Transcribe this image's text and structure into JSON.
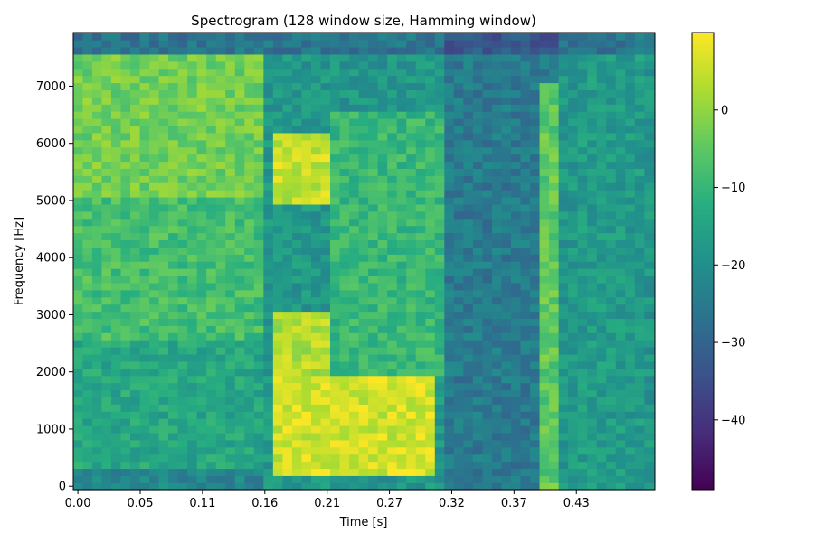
{
  "chart_data": {
    "type": "heatmap",
    "title": "Spectrogram (128 window size, Hamming window)",
    "xlabel": "Time [s]",
    "ylabel": "Frequency [Hz]",
    "colormap": "viridis",
    "xlim": [
      -0.004,
      0.5
    ],
    "ylim": [
      -60,
      7940
    ],
    "x_ticks": [
      0.0,
      0.054,
      0.108,
      0.162,
      0.216,
      0.27,
      0.324,
      0.378,
      0.432
    ],
    "x_tick_labels": [
      "0.00",
      "0.05",
      "0.11",
      "0.16",
      "0.21",
      "0.27",
      "0.32",
      "0.37",
      "0.43"
    ],
    "y_ticks": [
      0,
      1000,
      2000,
      3000,
      4000,
      5000,
      6000,
      7000
    ],
    "y_tick_labels": [
      "0",
      "1000",
      "2000",
      "3000",
      "4000",
      "5000",
      "6000",
      "7000"
    ],
    "time_bins": 61,
    "freq_bins": 65,
    "freq_step_hz": 125,
    "time_step_s": 0.00825,
    "colorbar": {
      "range": [
        -49,
        10
      ],
      "ticks": [
        0,
        -10,
        -20,
        -30,
        -40
      ],
      "tick_labels": [
        "0",
        "−10",
        "−20",
        "−30",
        "−40"
      ]
    },
    "regions": [
      {
        "t": [
          0.0,
          0.16
        ],
        "f": [
          5000,
          7600
        ],
        "level_db": -3
      },
      {
        "t": [
          0.0,
          0.16
        ],
        "f": [
          2500,
          5000
        ],
        "level_db": -8
      },
      {
        "t": [
          0.0,
          0.16
        ],
        "f": [
          300,
          2500
        ],
        "level_db": -14
      },
      {
        "t": [
          0.0,
          0.16
        ],
        "f": [
          0,
          300
        ],
        "level_db": -22
      },
      {
        "t": [
          0.17,
          0.24
        ],
        "f": [
          5000,
          6200
        ],
        "level_db": 5
      },
      {
        "t": [
          0.17,
          0.31
        ],
        "f": [
          200,
          2000
        ],
        "level_db": 6
      },
      {
        "t": [
          0.17,
          0.22
        ],
        "f": [
          2000,
          3000
        ],
        "level_db": 3
      },
      {
        "t": [
          0.22,
          0.32
        ],
        "f": [
          2000,
          6500
        ],
        "level_db": -10
      },
      {
        "t": [
          0.32,
          0.42
        ],
        "f": [
          0,
          7900
        ],
        "level_db": -25
      },
      {
        "t": [
          0.4,
          0.42
        ],
        "f": [
          0,
          7000
        ],
        "level_db": -5
      },
      {
        "t": [
          0.43,
          0.49
        ],
        "f": [
          0,
          7600
        ],
        "level_db": -17
      }
    ]
  }
}
